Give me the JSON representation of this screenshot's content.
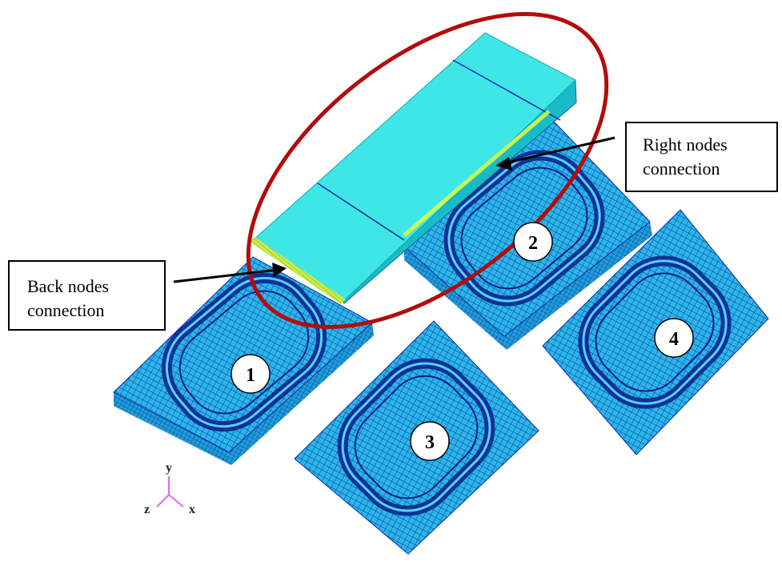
{
  "callouts": {
    "back": {
      "line1": "Back nodes",
      "line2": "connection"
    },
    "right": {
      "line1": "Right nodes",
      "line2": "connection"
    }
  },
  "parts": [
    {
      "label": "1"
    },
    {
      "label": "2"
    },
    {
      "label": "3"
    },
    {
      "label": "4"
    }
  ],
  "axes": {
    "y": "y",
    "z": "z",
    "x": "x"
  },
  "colors": {
    "mesh_fill": "#2bb7e6",
    "mesh_line": "#0f2aa8",
    "bar_top": "#3fe6e6",
    "bar_side": "#17bcc8",
    "ellipse": "#b30c0c",
    "node_highlight": "#e9ff3a",
    "axis": "#e667e6"
  }
}
